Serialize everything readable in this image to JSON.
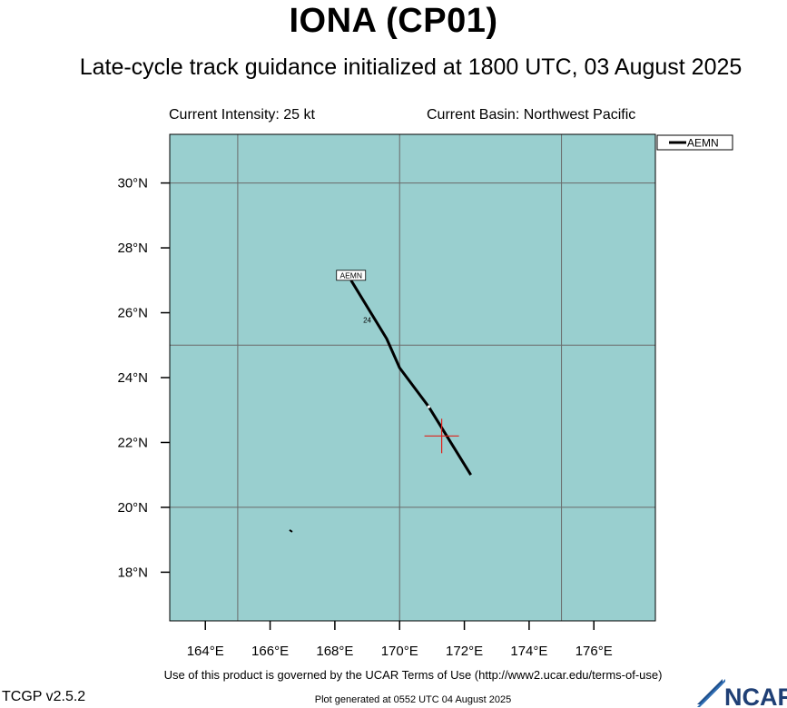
{
  "header": {
    "title": "IONA (CP01)",
    "subtitle": "Late-cycle track guidance initialized at 1800 UTC, 03 August 2025"
  },
  "info": {
    "intensity": "Current Intensity: 25 kt",
    "basin": "Current Basin: Northwest Pacific"
  },
  "footer": {
    "terms": "Use of this product is governed by the UCAR Terms of Use (http://www2.ucar.edu/terms-of-use)",
    "version": "TCGP v2.5.2",
    "generated": "Plot generated at 0552 UTC   04 August 2025",
    "logo_text": "NCAR"
  },
  "map": {
    "ocean_color": "#99cfcf",
    "lon_range": [
      162.9,
      177.9
    ],
    "lat_range": [
      16.5,
      31.5
    ],
    "lon_ticks": [
      164,
      166,
      168,
      170,
      172,
      174,
      176
    ],
    "lon_tick_labels": [
      "164°E",
      "166°E",
      "168°E",
      "170°E",
      "172°E",
      "174°E",
      "176°E"
    ],
    "lat_ticks": [
      18,
      20,
      22,
      24,
      26,
      28,
      30
    ],
    "lat_tick_labels": [
      "18°N",
      "20°N",
      "22°N",
      "24°N",
      "26°N",
      "28°N",
      "30°N"
    ],
    "grid_lons": [
      165,
      170,
      175
    ],
    "grid_lats": [
      20,
      25,
      30
    ],
    "storm_position": {
      "lon": 171.3,
      "lat": 22.2,
      "marker_color": "#e0201a"
    },
    "island": {
      "lon": 166.6,
      "lat": 19.3
    },
    "legend": {
      "entries": [
        "AEMN"
      ]
    },
    "tracks": [
      {
        "name": "AEMN",
        "color": "#000000",
        "points": [
          {
            "lon": 172.2,
            "lat": 21.0
          },
          {
            "lon": 170.9,
            "lat": 23.1
          },
          {
            "lon": 170.0,
            "lat": 24.3
          },
          {
            "lon": 169.6,
            "lat": 25.2
          },
          {
            "lon": 168.5,
            "lat": 27.0
          }
        ],
        "end_label": "AEMN",
        "hour_markers": [
          {
            "text": "24",
            "lon": 169.0,
            "lat": 25.7
          }
        ]
      }
    ]
  }
}
